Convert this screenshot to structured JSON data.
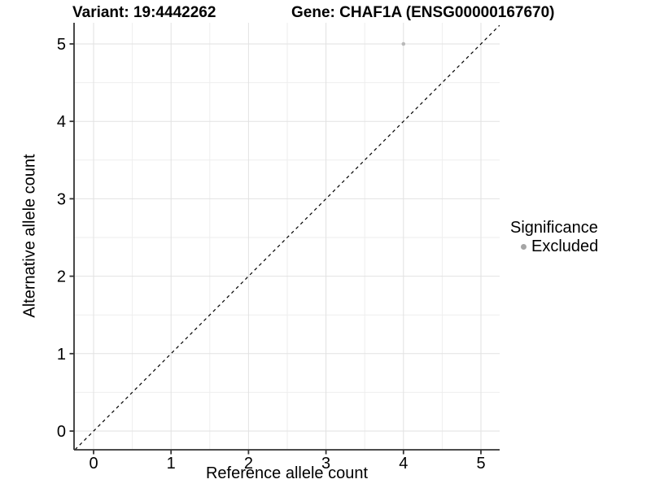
{
  "colors": {
    "background": "#ffffff",
    "grid_major": "#e2e2e2",
    "grid_minor": "#eeeeee",
    "axis_line": "#333333",
    "tick_label": "#000000",
    "identity_line": "#000000",
    "point": "#b9b9b9",
    "legend_point": "#a5a5a5"
  },
  "chart_data": {
    "type": "scatter",
    "titles": {
      "variant": "Variant: 19:4442262",
      "gene": "Gene: CHAF1A (ENSG00000167670)"
    },
    "xlabel": "Reference allele count",
    "ylabel": "Alternative allele count",
    "x_ticks": [
      0,
      1,
      2,
      3,
      4,
      5
    ],
    "y_ticks": [
      0,
      1,
      2,
      3,
      4,
      5
    ],
    "x_minor_ticks": [
      0.5,
      1.5,
      2.5,
      3.5,
      4.5
    ],
    "y_minor_ticks": [
      0.5,
      1.5,
      2.5,
      3.5,
      4.5
    ],
    "xlim": [
      -0.25,
      5.24
    ],
    "ylim": [
      -0.24,
      5.27
    ],
    "grid": "major+minor",
    "points": [
      {
        "x": 4,
        "y": 5,
        "significance": "Excluded"
      }
    ],
    "reference_line": {
      "slope": 1,
      "intercept": 0,
      "style": "dashed"
    },
    "legend": {
      "title": "Significance",
      "position": "right",
      "entries": [
        {
          "label": "Excluded",
          "color": "#b9b9b9"
        }
      ]
    }
  }
}
